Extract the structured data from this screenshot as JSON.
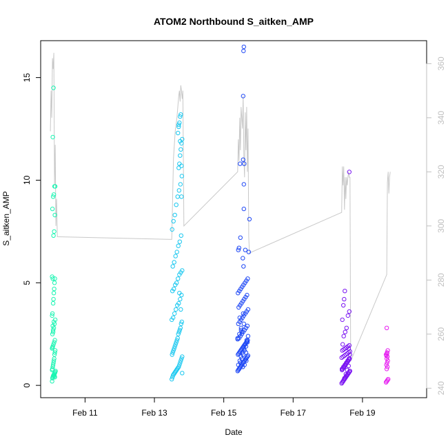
{
  "chart_data": {
    "type": "scatter",
    "title": "ATOM2 Northbound S_aitken_AMP",
    "xlabel": "Date",
    "ylabel": "S_aitken_AMP",
    "x_unit": "day of February",
    "xlim": [
      9.72,
      20.85
    ],
    "ylim": [
      -0.6,
      16.8
    ],
    "x_ticks": [
      {
        "value": 11,
        "label": "Feb 11"
      },
      {
        "value": 13,
        "label": "Feb 13"
      },
      {
        "value": 15,
        "label": "Feb 15"
      },
      {
        "value": 17,
        "label": "Feb 17"
      },
      {
        "value": 19,
        "label": "Feb 19"
      }
    ],
    "y_ticks": [
      {
        "value": 0,
        "label": "0"
      },
      {
        "value": 5,
        "label": "5"
      },
      {
        "value": 10,
        "label": "10"
      },
      {
        "value": 15,
        "label": "15"
      }
    ],
    "secondary_ylim": [
      236.5,
      368.5
    ],
    "secondary_y_ticks": [
      {
        "value": 240,
        "label": "240"
      },
      {
        "value": 260,
        "label": "260"
      },
      {
        "value": 280,
        "label": "280"
      },
      {
        "value": 300,
        "label": "300"
      },
      {
        "value": 320,
        "label": "320"
      },
      {
        "value": 340,
        "label": "340"
      },
      {
        "value": 360,
        "label": "360"
      }
    ],
    "colors": {
      "line": "#c8c8c8",
      "secondary_axis": "#bfbfbf",
      "axis": "#000000"
    },
    "point_series": [
      {
        "color": "#19f5b2",
        "x": [
          10.05,
          10.06,
          10.07,
          10.08,
          10.09,
          10.1,
          10.11,
          10.12,
          10.13,
          10.14,
          10.15,
          10.05,
          10.06,
          10.07,
          10.08,
          10.09,
          10.1,
          10.11,
          10.12,
          10.13,
          10.14,
          10.05,
          10.07,
          10.09,
          10.11,
          10.13,
          10.06,
          10.08,
          10.1,
          10.12,
          10.14,
          10.05,
          10.06,
          10.07,
          10.08,
          10.09,
          10.1,
          10.11,
          10.12,
          10.13,
          10.05,
          10.07,
          10.09,
          10.11,
          10.13,
          10.06,
          10.08,
          10.1,
          10.12,
          10.14,
          10.07,
          10.09,
          10.11,
          10.13,
          10.06,
          10.08,
          10.1,
          10.12
        ],
        "y": [
          0.2,
          0.35,
          0.4,
          0.45,
          0.5,
          0.5,
          0.55,
          0.6,
          0.6,
          0.65,
          0.7,
          0.75,
          0.8,
          0.9,
          1.0,
          1.1,
          1.2,
          1.3,
          1.5,
          1.6,
          1.7,
          1.8,
          1.9,
          2.0,
          2.1,
          2.2,
          2.5,
          2.6,
          2.8,
          3.0,
          3.2,
          3.4,
          3.5,
          2.9,
          4.0,
          4.2,
          4.5,
          4.7,
          5.0,
          5.2,
          5.3,
          5.2,
          7.3,
          7.5,
          8.3,
          8.6,
          9.2,
          9.3,
          9.7,
          9.7,
          12.1,
          14.5,
          0.5,
          0.4,
          1.85,
          2.7,
          3.1,
          0.45
        ]
      },
      {
        "color": "#1ac8f0",
        "x": [
          13.5,
          13.52,
          13.54,
          13.56,
          13.58,
          13.6,
          13.62,
          13.64,
          13.66,
          13.68,
          13.7,
          13.72,
          13.74,
          13.76,
          13.78,
          13.8,
          13.51,
          13.53,
          13.55,
          13.57,
          13.59,
          13.61,
          13.63,
          13.65,
          13.67,
          13.69,
          13.71,
          13.73,
          13.75,
          13.77,
          13.79,
          13.5,
          13.54,
          13.58,
          13.62,
          13.66,
          13.7,
          13.74,
          13.78,
          13.52,
          13.56,
          13.6,
          13.64,
          13.68,
          13.72,
          13.76,
          13.8,
          13.53,
          13.57,
          13.61,
          13.65,
          13.69,
          13.73,
          13.77,
          13.51,
          13.55,
          13.59,
          13.63,
          13.67,
          13.71,
          13.75,
          13.79,
          13.7,
          13.72,
          13.74,
          13.76,
          13.78,
          13.8,
          13.68,
          13.7,
          13.72,
          13.74,
          13.76,
          13.78,
          13.7,
          13.74,
          13.78,
          13.72,
          13.76,
          13.8
        ],
        "y": [
          0.3,
          0.4,
          0.5,
          0.55,
          0.6,
          0.65,
          0.7,
          0.75,
          0.8,
          0.85,
          0.9,
          1.0,
          1.1,
          1.2,
          1.3,
          1.4,
          1.5,
          1.6,
          1.7,
          1.8,
          1.9,
          2.0,
          2.1,
          2.2,
          2.3,
          2.5,
          2.6,
          2.7,
          2.8,
          3.0,
          3.1,
          3.2,
          3.3,
          3.5,
          3.7,
          3.9,
          4.0,
          4.2,
          4.4,
          4.6,
          4.7,
          4.9,
          5.0,
          5.2,
          5.4,
          5.5,
          5.6,
          5.8,
          6.0,
          6.3,
          6.5,
          6.8,
          7.0,
          7.3,
          7.6,
          8.0,
          8.3,
          8.8,
          9.2,
          9.5,
          9.8,
          10.2,
          10.6,
          10.8,
          11.2,
          11.5,
          11.8,
          12.0,
          12.3,
          12.6,
          12.8,
          13.1,
          13.2,
          10.7,
          12.7,
          11.9,
          9.2,
          4.5,
          3.7,
          0.6
        ]
      },
      {
        "color": "#1f48f5",
        "x": [
          15.4,
          15.42,
          15.44,
          15.46,
          15.48,
          15.5,
          15.52,
          15.54,
          15.56,
          15.58,
          15.6,
          15.62,
          15.64,
          15.66,
          15.68,
          15.7,
          15.41,
          15.43,
          15.45,
          15.47,
          15.49,
          15.51,
          15.53,
          15.55,
          15.57,
          15.59,
          15.61,
          15.63,
          15.65,
          15.67,
          15.69,
          15.4,
          15.44,
          15.48,
          15.52,
          15.56,
          15.6,
          15.64,
          15.68,
          15.42,
          15.46,
          15.5,
          15.54,
          15.58,
          15.62,
          15.66,
          15.7,
          15.43,
          15.47,
          15.51,
          15.55,
          15.59,
          15.63,
          15.67,
          15.41,
          15.45,
          15.49,
          15.53,
          15.57,
          15.61,
          15.65,
          15.69,
          15.42,
          15.46,
          15.5,
          15.54,
          15.58,
          15.62,
          15.66,
          15.44,
          15.48,
          15.52,
          15.56,
          15.6,
          15.64,
          15.68,
          15.4,
          15.45,
          15.5,
          15.55,
          15.6,
          15.65,
          15.7,
          15.46,
          15.52,
          15.58,
          15.64,
          15.5,
          15.56,
          15.62,
          15.55,
          15.57,
          15.58,
          15.56,
          15.59,
          15.74,
          15.72,
          15.48,
          15.42,
          15.44,
          15.47
        ],
        "y": [
          0.7,
          0.75,
          0.8,
          0.85,
          0.9,
          0.95,
          1.0,
          1.05,
          1.1,
          1.15,
          1.2,
          1.25,
          1.3,
          1.35,
          1.4,
          1.45,
          1.5,
          1.55,
          1.6,
          1.65,
          1.7,
          1.75,
          1.8,
          1.85,
          1.9,
          1.95,
          2.0,
          2.05,
          2.1,
          2.15,
          2.2,
          2.25,
          2.3,
          2.4,
          2.5,
          2.6,
          2.7,
          2.8,
          2.9,
          3.0,
          3.1,
          3.2,
          3.3,
          3.4,
          3.5,
          3.6,
          3.7,
          3.8,
          3.9,
          4.0,
          4.1,
          4.2,
          4.3,
          4.4,
          4.5,
          4.6,
          4.7,
          4.8,
          4.9,
          5.0,
          5.1,
          5.2,
          1.0,
          1.2,
          1.4,
          1.6,
          1.8,
          2.0,
          2.2,
          0.8,
          1.1,
          1.3,
          1.5,
          1.7,
          1.9,
          2.1,
          2.3,
          2.5,
          2.7,
          0.9,
          1.0,
          1.2,
          2.4,
          3.3,
          2.6,
          3.0,
          1.6,
          2.8,
          3.5,
          6.6,
          6.2,
          5.8,
          9.8,
          11.0,
          10.8,
          8.1,
          6.5,
          7.2,
          6.6,
          6.7,
          10.8
        ],
        "extra": [
          {
            "x": 15.58,
            "y": 16.5
          },
          {
            "x": 15.57,
            "y": 16.3
          },
          {
            "x": 15.56,
            "y": 14.1
          },
          {
            "x": 15.58,
            "y": 8.6
          }
        ]
      },
      {
        "color": "#7a14f2",
        "x": [
          18.4,
          18.42,
          18.44,
          18.46,
          18.48,
          18.5,
          18.52,
          18.54,
          18.56,
          18.58,
          18.6,
          18.62,
          18.64,
          18.41,
          18.43,
          18.45,
          18.47,
          18.49,
          18.51,
          18.53,
          18.55,
          18.57,
          18.59,
          18.61,
          18.63,
          18.4,
          18.44,
          18.48,
          18.52,
          18.56,
          18.6,
          18.64,
          18.42,
          18.46,
          18.5,
          18.54,
          18.58,
          18.62,
          18.43,
          18.47,
          18.51,
          18.55,
          18.59,
          18.63,
          18.41,
          18.45,
          18.49,
          18.53,
          18.57,
          18.61,
          18.44,
          18.48,
          18.52,
          18.56,
          18.6,
          18.46,
          18.5,
          18.54,
          18.58,
          18.42,
          18.62,
          18.45,
          18.47,
          18.49,
          18.6,
          18.62,
          18.64
        ],
        "y": [
          0.1,
          0.15,
          0.2,
          0.25,
          0.3,
          0.35,
          0.4,
          0.45,
          0.5,
          0.55,
          0.6,
          0.65,
          0.7,
          0.75,
          0.8,
          0.85,
          0.9,
          0.95,
          1.0,
          1.05,
          1.1,
          1.15,
          1.2,
          1.25,
          1.3,
          1.35,
          1.4,
          1.45,
          1.5,
          1.55,
          1.6,
          1.65,
          1.7,
          1.75,
          1.8,
          1.85,
          1.9,
          1.95,
          2.0,
          0.3,
          0.4,
          0.5,
          0.6,
          0.7,
          0.8,
          0.9,
          1.0,
          1.1,
          1.2,
          1.3,
          0.2,
          0.35,
          0.55,
          0.75,
          0.95,
          2.4,
          2.6,
          2.8,
          3.4,
          3.2,
          3.6,
          3.9,
          4.2,
          4.6,
          1.8,
          10.4,
          1.5
        ]
      },
      {
        "color": "#e61df0",
        "x": [
          19.68,
          19.7,
          19.72,
          19.74,
          19.69,
          19.71,
          19.73,
          19.7,
          19.72,
          19.68,
          19.71,
          19.73,
          19.7,
          19.72,
          19.69,
          19.71,
          19.7
        ],
        "y": [
          0.15,
          0.2,
          0.25,
          0.3,
          1.0,
          1.1,
          1.2,
          1.3,
          1.4,
          1.5,
          1.6,
          1.7,
          0.8,
          0.9,
          1.45,
          1.55,
          2.8
        ]
      }
    ],
    "line_series": {
      "axis": "secondary",
      "x": [
        10.0,
        10.02,
        10.04,
        10.06,
        10.08,
        10.1,
        10.12,
        10.14,
        10.16,
        10.18,
        10.2,
        13.5,
        13.55,
        13.6,
        13.65,
        13.7,
        13.72,
        13.74,
        13.76,
        13.78,
        13.8,
        13.82,
        13.85,
        15.4,
        15.42,
        15.44,
        15.46,
        15.48,
        15.5,
        15.52,
        15.54,
        15.56,
        15.58,
        15.6,
        15.62,
        15.64,
        15.66,
        15.68,
        15.7,
        15.72,
        15.74,
        18.4,
        18.42,
        18.44,
        18.46,
        18.48,
        18.5,
        18.52,
        18.54,
        18.56,
        18.58,
        18.6,
        18.62,
        18.64,
        18.66,
        19.7,
        19.72,
        19.74,
        19.76,
        19.78,
        19.8
      ],
      "y": [
        335,
        350,
        340,
        362,
        358,
        364,
        315,
        330,
        300,
        310,
        296,
        295,
        325,
        335,
        340,
        348,
        350,
        346,
        352,
        350,
        347,
        350,
        300,
        320,
        332,
        324,
        340,
        328,
        344,
        340,
        336,
        348,
        326,
        318,
        342,
        328,
        344,
        320,
        336,
        296,
        290,
        305,
        322,
        315,
        322,
        306,
        318,
        310,
        318,
        315,
        318,
        320,
        318,
        318,
        250,
        282,
        316,
        320,
        312,
        318,
        320
      ]
    }
  }
}
